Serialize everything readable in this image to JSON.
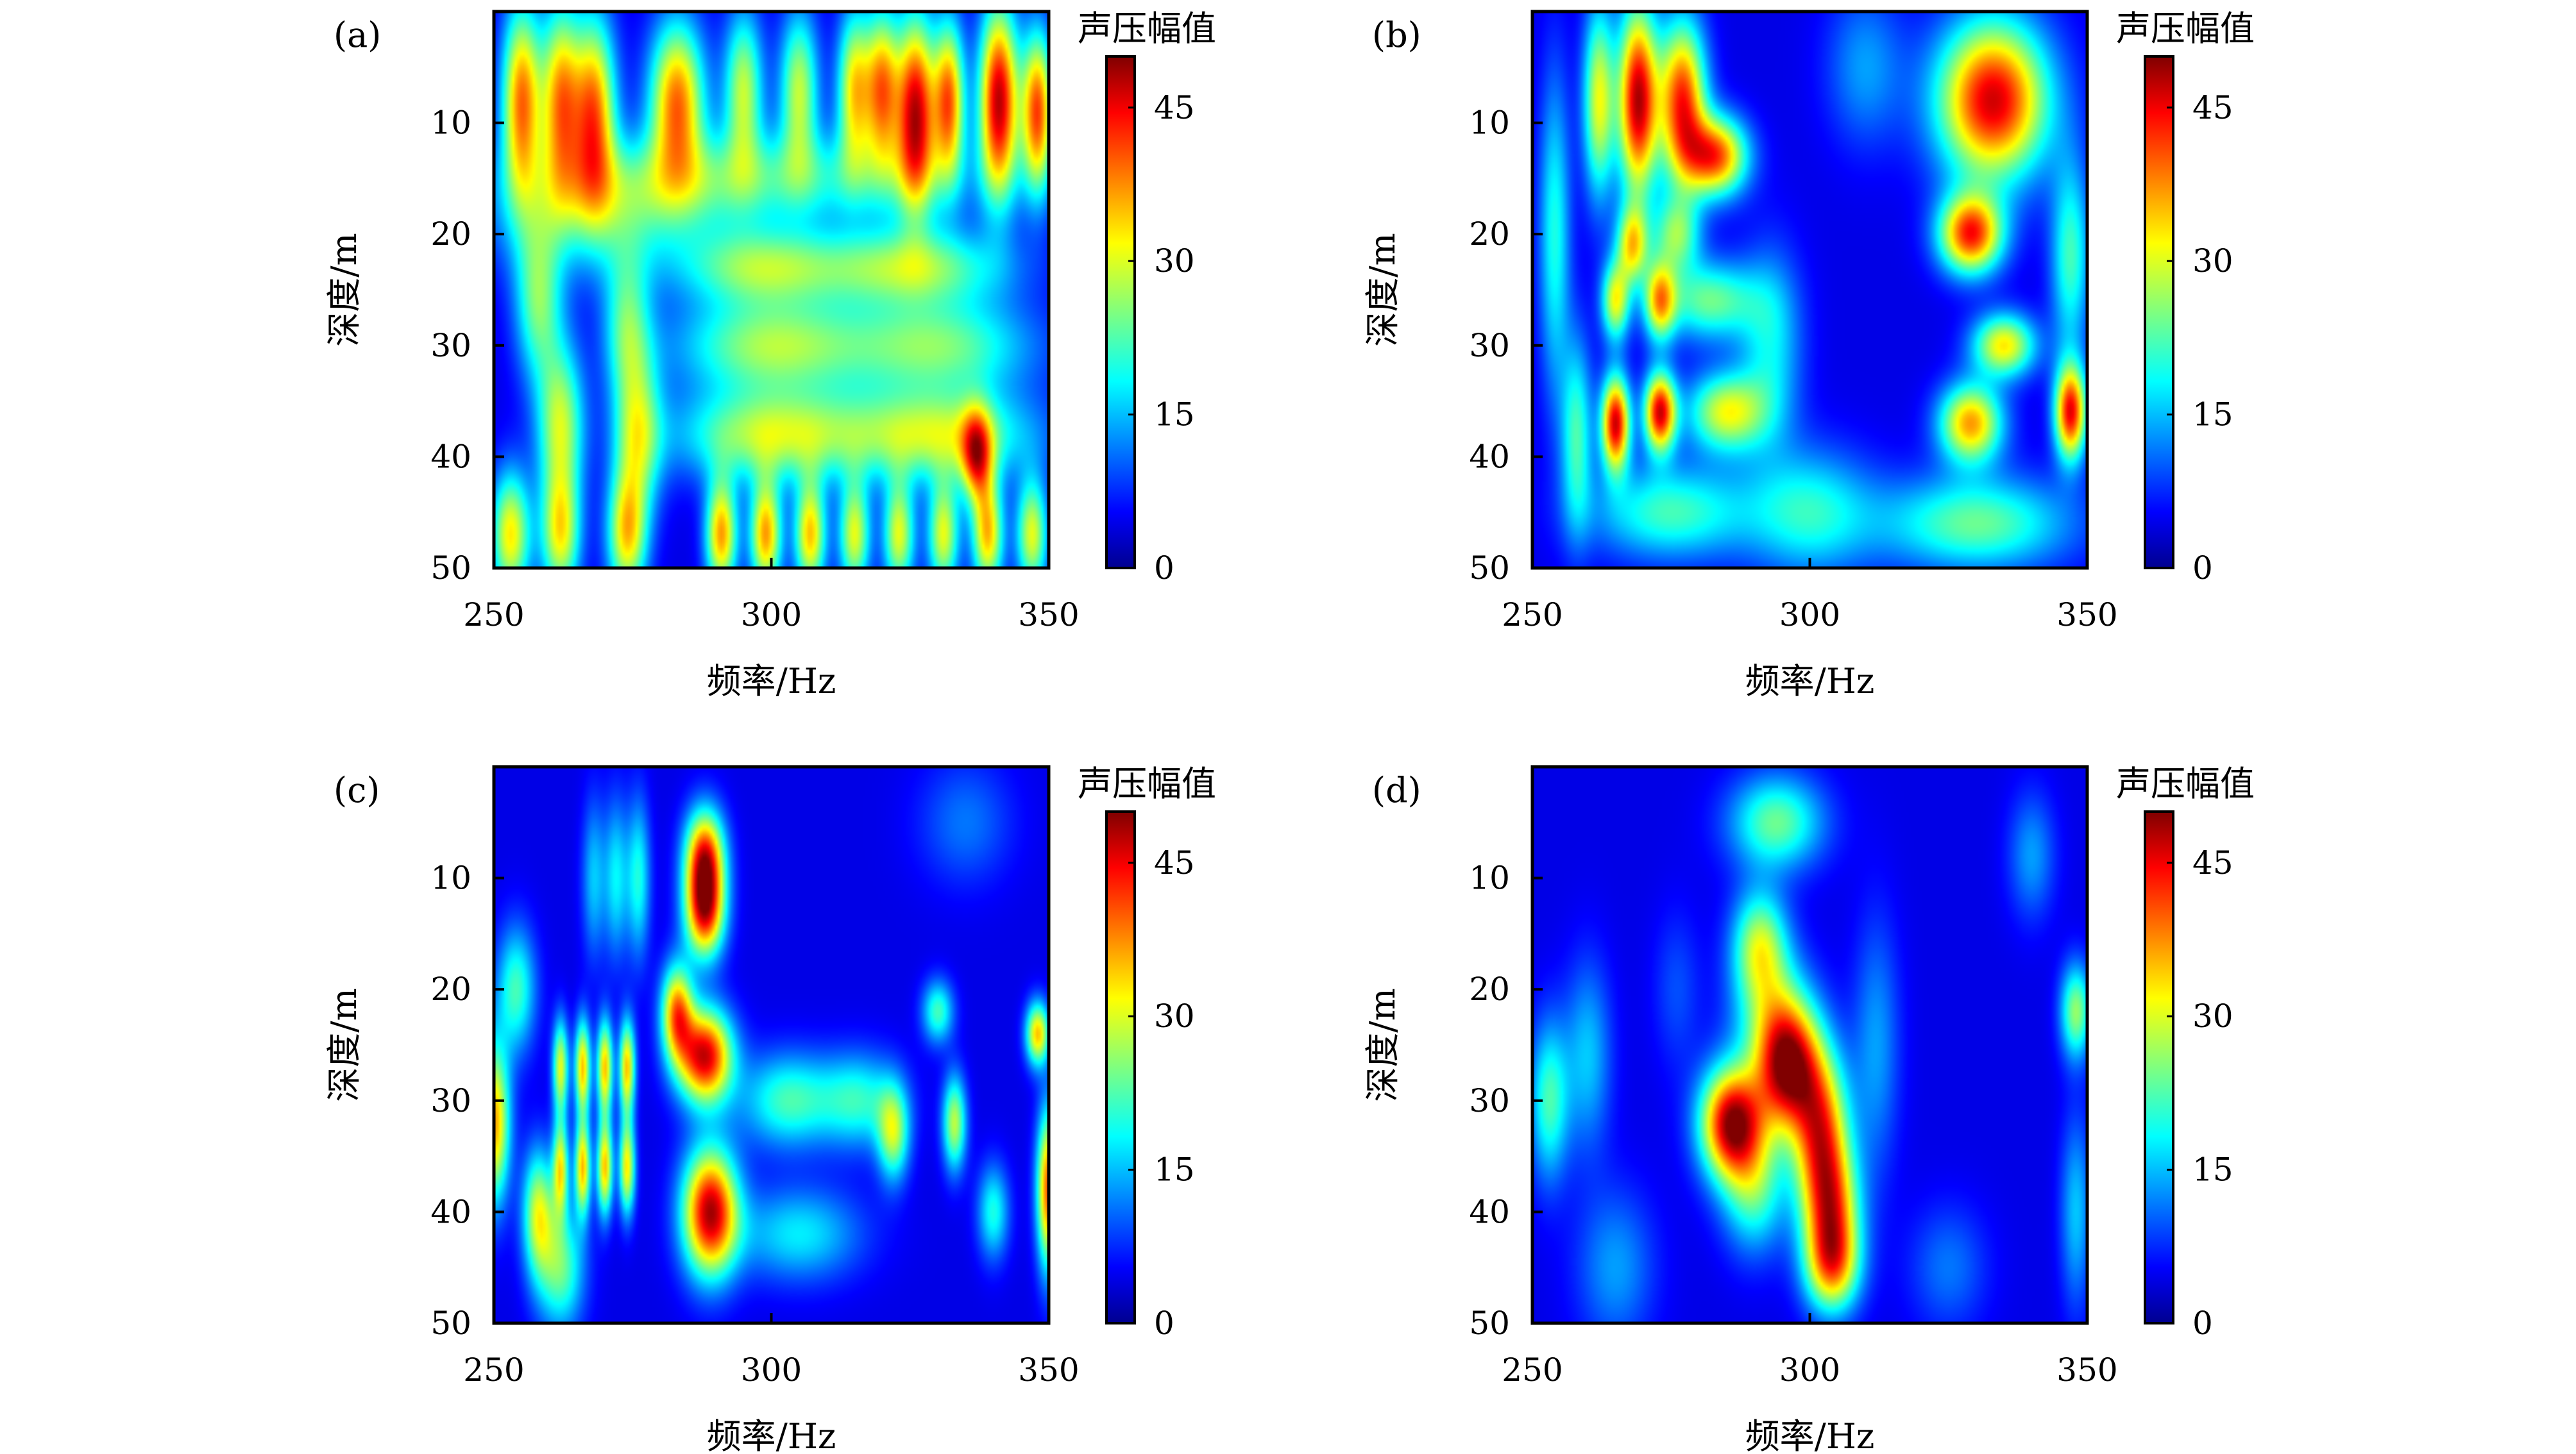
{
  "chart_data": [
    {
      "type": "heatmap",
      "panel_label": "(a)",
      "xlabel": "频率/Hz",
      "ylabel": "深度/m",
      "colorbar_label": "声压幅值",
      "xlim": [
        250,
        350
      ],
      "ylim": [
        0,
        50
      ],
      "y_inverted": true,
      "xticks": [
        "250",
        "300",
        "350"
      ],
      "yticks": [
        "10",
        "20",
        "30",
        "40",
        "50"
      ],
      "colorbar_ticks": [
        "0",
        "15",
        "30",
        "45"
      ],
      "zlim": [
        0,
        50
      ],
      "colormap": "jet",
      "blobs": [
        {
          "x": 255,
          "y": 8,
          "v": 38,
          "sx": 2.5,
          "sy": 6
        },
        {
          "x": 262,
          "y": 8,
          "v": 35,
          "sx": 2.5,
          "sy": 6
        },
        {
          "x": 268,
          "y": 9,
          "v": 38,
          "sx": 2.8,
          "sy": 6
        },
        {
          "x": 283,
          "y": 8,
          "v": 38,
          "sx": 3.5,
          "sy": 5
        },
        {
          "x": 295,
          "y": 7,
          "v": 28,
          "sx": 2.5,
          "sy": 5
        },
        {
          "x": 305,
          "y": 7,
          "v": 28,
          "sx": 2.5,
          "sy": 5
        },
        {
          "x": 315,
          "y": 7,
          "v": 32,
          "sx": 2.2,
          "sy": 5
        },
        {
          "x": 320,
          "y": 7,
          "v": 36,
          "sx": 2.2,
          "sy": 5
        },
        {
          "x": 326,
          "y": 9,
          "v": 46,
          "sx": 2.5,
          "sy": 6
        },
        {
          "x": 332,
          "y": 8,
          "v": 38,
          "sx": 2,
          "sy": 5
        },
        {
          "x": 341,
          "y": 8,
          "v": 47,
          "sx": 2.5,
          "sy": 6
        },
        {
          "x": 348,
          "y": 9,
          "v": 40,
          "sx": 2,
          "sy": 5
        },
        {
          "x": 258,
          "y": 26,
          "v": 24,
          "sx": 3,
          "sy": 5
        },
        {
          "x": 274,
          "y": 28,
          "v": 22,
          "sx": 3,
          "sy": 5
        },
        {
          "x": 298,
          "y": 23,
          "v": 24,
          "sx": 10,
          "sy": 2.5
        },
        {
          "x": 325,
          "y": 23,
          "v": 26,
          "sx": 12,
          "sy": 2.5
        },
        {
          "x": 300,
          "y": 30,
          "v": 26,
          "sx": 12,
          "sy": 3
        },
        {
          "x": 330,
          "y": 30,
          "v": 24,
          "sx": 12,
          "sy": 3
        },
        {
          "x": 262,
          "y": 37,
          "v": 28,
          "sx": 3,
          "sy": 5
        },
        {
          "x": 276,
          "y": 38,
          "v": 26,
          "sx": 3,
          "sy": 5
        },
        {
          "x": 300,
          "y": 38,
          "v": 28,
          "sx": 12,
          "sy": 3
        },
        {
          "x": 330,
          "y": 38,
          "v": 28,
          "sx": 12,
          "sy": 3
        },
        {
          "x": 337,
          "y": 40,
          "v": 32,
          "sx": 2,
          "sy": 3
        },
        {
          "x": 253,
          "y": 47,
          "v": 32,
          "sx": 2.5,
          "sy": 4
        },
        {
          "x": 262,
          "y": 47,
          "v": 30,
          "sx": 2.5,
          "sy": 4
        },
        {
          "x": 274,
          "y": 47,
          "v": 32,
          "sx": 2.5,
          "sy": 4
        },
        {
          "x": 291,
          "y": 47,
          "v": 36,
          "sx": 2,
          "sy": 3.5
        },
        {
          "x": 299,
          "y": 47,
          "v": 36,
          "sx": 2,
          "sy": 3.5
        },
        {
          "x": 307,
          "y": 47,
          "v": 34,
          "sx": 2,
          "sy": 3.5
        },
        {
          "x": 315,
          "y": 47,
          "v": 30,
          "sx": 2,
          "sy": 3.5
        },
        {
          "x": 323,
          "y": 47,
          "v": 30,
          "sx": 2,
          "sy": 3.5
        },
        {
          "x": 331,
          "y": 47,
          "v": 30,
          "sx": 2,
          "sy": 3.5
        },
        {
          "x": 339,
          "y": 47,
          "v": 34,
          "sx": 2,
          "sy": 3.5
        },
        {
          "x": 347,
          "y": 47,
          "v": 30,
          "sx": 2,
          "sy": 3.5
        },
        {
          "x": 300,
          "y": 15,
          "v": 20,
          "sx": 25,
          "sy": 3
        },
        {
          "x": 270,
          "y": 18,
          "v": 18,
          "sx": 15,
          "sy": 4
        }
      ]
    },
    {
      "type": "heatmap",
      "panel_label": "(b)",
      "xlabel": "频率/Hz",
      "ylabel": "深度/m",
      "colorbar_label": "声压幅值",
      "xlim": [
        250,
        350
      ],
      "ylim": [
        0,
        50
      ],
      "y_inverted": true,
      "xticks": [
        "250",
        "300",
        "350"
      ],
      "yticks": [
        "10",
        "20",
        "30",
        "40",
        "50"
      ],
      "colorbar_ticks": [
        "0",
        "15",
        "30",
        "45"
      ],
      "zlim": [
        0,
        50
      ],
      "colormap": "jet",
      "blobs": [
        {
          "x": 269,
          "y": 8,
          "v": 47,
          "sx": 2.5,
          "sy": 6
        },
        {
          "x": 277,
          "y": 8,
          "v": 42,
          "sx": 3,
          "sy": 5
        },
        {
          "x": 283,
          "y": 13,
          "v": 40,
          "sx": 4,
          "sy": 2.5
        },
        {
          "x": 262,
          "y": 8,
          "v": 30,
          "sx": 2,
          "sy": 6
        },
        {
          "x": 333,
          "y": 8,
          "v": 46,
          "sx": 7,
          "sy": 5
        },
        {
          "x": 329,
          "y": 20,
          "v": 42,
          "sx": 4,
          "sy": 2.5
        },
        {
          "x": 335,
          "y": 30,
          "v": 32,
          "sx": 4,
          "sy": 2
        },
        {
          "x": 329,
          "y": 37,
          "v": 36,
          "sx": 4,
          "sy": 2.5
        },
        {
          "x": 347,
          "y": 36,
          "v": 44,
          "sx": 2,
          "sy": 3
        },
        {
          "x": 265,
          "y": 37,
          "v": 46,
          "sx": 1.8,
          "sy": 3
        },
        {
          "x": 273,
          "y": 36,
          "v": 45,
          "sx": 2,
          "sy": 2.5
        },
        {
          "x": 285,
          "y": 36,
          "v": 30,
          "sx": 5,
          "sy": 2.5
        },
        {
          "x": 273,
          "y": 26,
          "v": 32,
          "sx": 2,
          "sy": 2.5
        },
        {
          "x": 265,
          "y": 26,
          "v": 30,
          "sx": 1.8,
          "sy": 2.5
        },
        {
          "x": 282,
          "y": 26,
          "v": 24,
          "sx": 6,
          "sy": 2.5
        },
        {
          "x": 268,
          "y": 21,
          "v": 30,
          "sx": 2,
          "sy": 2.5
        },
        {
          "x": 276,
          "y": 20,
          "v": 24,
          "sx": 3,
          "sy": 2.5
        },
        {
          "x": 330,
          "y": 46,
          "v": 24,
          "sx": 12,
          "sy": 3
        },
        {
          "x": 275,
          "y": 45,
          "v": 22,
          "sx": 10,
          "sy": 3
        },
        {
          "x": 300,
          "y": 45,
          "v": 20,
          "sx": 8,
          "sy": 4
        },
        {
          "x": 254,
          "y": 20,
          "v": 20,
          "sx": 2,
          "sy": 10
        },
        {
          "x": 258,
          "y": 38,
          "v": 22,
          "sx": 2,
          "sy": 6
        },
        {
          "x": 347,
          "y": 22,
          "v": 22,
          "sx": 2.5,
          "sy": 6
        },
        {
          "x": 310,
          "y": 5,
          "v": 14,
          "sx": 5,
          "sy": 5
        },
        {
          "x": 293,
          "y": 30,
          "v": 18,
          "sx": 4,
          "sy": 6
        }
      ]
    },
    {
      "type": "heatmap",
      "panel_label": "(c)",
      "xlabel": "频率/Hz",
      "ylabel": "深度/m",
      "colorbar_label": "声压幅值",
      "xlim": [
        250,
        350
      ],
      "ylim": [
        0,
        50
      ],
      "y_inverted": true,
      "xticks": [
        "250",
        "300",
        "350"
      ],
      "yticks": [
        "10",
        "20",
        "30",
        "40",
        "50"
      ],
      "colorbar_ticks": [
        "0",
        "15",
        "30",
        "45"
      ],
      "zlim": [
        0,
        50
      ],
      "colormap": "jet",
      "blobs": [
        {
          "x": 288,
          "y": 8,
          "v": 40,
          "sx": 2.5,
          "sy": 3
        },
        {
          "x": 288,
          "y": 13,
          "v": 42,
          "sx": 2.5,
          "sy": 3
        },
        {
          "x": 288,
          "y": 26,
          "v": 46,
          "sx": 3.5,
          "sy": 3
        },
        {
          "x": 283,
          "y": 22,
          "v": 36,
          "sx": 2,
          "sy": 3
        },
        {
          "x": 289,
          "y": 40,
          "v": 47,
          "sx": 3.5,
          "sy": 4
        },
        {
          "x": 250,
          "y": 32,
          "v": 36,
          "sx": 2,
          "sy": 5
        },
        {
          "x": 350,
          "y": 38,
          "v": 40,
          "sx": 1.5,
          "sy": 5
        },
        {
          "x": 348,
          "y": 24,
          "v": 34,
          "sx": 1.5,
          "sy": 2
        },
        {
          "x": 262,
          "y": 27,
          "v": 30,
          "sx": 1,
          "sy": 3
        },
        {
          "x": 266,
          "y": 27,
          "v": 34,
          "sx": 1,
          "sy": 3
        },
        {
          "x": 270,
          "y": 27,
          "v": 34,
          "sx": 1,
          "sy": 3
        },
        {
          "x": 274,
          "y": 27,
          "v": 34,
          "sx": 1,
          "sy": 3
        },
        {
          "x": 262,
          "y": 36,
          "v": 30,
          "sx": 1,
          "sy": 3
        },
        {
          "x": 266,
          "y": 36,
          "v": 34,
          "sx": 1,
          "sy": 3
        },
        {
          "x": 270,
          "y": 36,
          "v": 34,
          "sx": 1,
          "sy": 3
        },
        {
          "x": 274,
          "y": 36,
          "v": 32,
          "sx": 1,
          "sy": 3
        },
        {
          "x": 258,
          "y": 40,
          "v": 28,
          "sx": 2,
          "sy": 4
        },
        {
          "x": 262,
          "y": 45,
          "v": 24,
          "sx": 3,
          "sy": 4
        },
        {
          "x": 272,
          "y": 10,
          "v": 18,
          "sx": 1.5,
          "sy": 5
        },
        {
          "x": 276,
          "y": 10,
          "v": 20,
          "sx": 1.5,
          "sy": 5
        },
        {
          "x": 268,
          "y": 10,
          "v": 16,
          "sx": 1.5,
          "sy": 5
        },
        {
          "x": 254,
          "y": 20,
          "v": 22,
          "sx": 2.5,
          "sy": 4
        },
        {
          "x": 303,
          "y": 30,
          "v": 22,
          "sx": 6,
          "sy": 3
        },
        {
          "x": 316,
          "y": 30,
          "v": 20,
          "sx": 5,
          "sy": 3
        },
        {
          "x": 322,
          "y": 33,
          "v": 26,
          "sx": 2,
          "sy": 3
        },
        {
          "x": 333,
          "y": 32,
          "v": 28,
          "sx": 1.5,
          "sy": 3
        },
        {
          "x": 330,
          "y": 22,
          "v": 22,
          "sx": 2,
          "sy": 2
        },
        {
          "x": 340,
          "y": 40,
          "v": 20,
          "sx": 2,
          "sy": 3
        },
        {
          "x": 305,
          "y": 42,
          "v": 18,
          "sx": 8,
          "sy": 3
        },
        {
          "x": 335,
          "y": 5,
          "v": 12,
          "sx": 6,
          "sy": 4
        }
      ]
    },
    {
      "type": "heatmap",
      "panel_label": "(d)",
      "xlabel": "频率/Hz",
      "ylabel": "深度/m",
      "colorbar_label": "声压幅值",
      "xlim": [
        250,
        350
      ],
      "ylim": [
        0,
        50
      ],
      "y_inverted": true,
      "xticks": [
        "250",
        "300",
        "350"
      ],
      "yticks": [
        "10",
        "20",
        "30",
        "40",
        "50"
      ],
      "colorbar_ticks": [
        "0",
        "15",
        "30",
        "45"
      ],
      "zlim": [
        0,
        50
      ],
      "colormap": "jet",
      "blobs": [
        {
          "x": 294,
          "y": 5,
          "v": 24,
          "sx": 6,
          "sy": 3
        },
        {
          "x": 291,
          "y": 16,
          "v": 27,
          "sx": 3.5,
          "sy": 3.5
        },
        {
          "x": 293,
          "y": 22,
          "v": 18,
          "sx": 5,
          "sy": 4
        },
        {
          "x": 296,
          "y": 27,
          "v": 46,
          "sx": 4,
          "sy": 4
        },
        {
          "x": 286,
          "y": 32,
          "v": 48,
          "sx": 4,
          "sy": 3.5
        },
        {
          "x": 302,
          "y": 33,
          "v": 38,
          "sx": 3.5,
          "sy": 5
        },
        {
          "x": 304,
          "y": 40,
          "v": 32,
          "sx": 3.5,
          "sy": 4
        },
        {
          "x": 304,
          "y": 45,
          "v": 30,
          "sx": 3.5,
          "sy": 3
        },
        {
          "x": 290,
          "y": 38,
          "v": 22,
          "sx": 4,
          "sy": 4
        },
        {
          "x": 253,
          "y": 30,
          "v": 22,
          "sx": 2.5,
          "sy": 5
        },
        {
          "x": 260,
          "y": 26,
          "v": 16,
          "sx": 3,
          "sy": 6
        },
        {
          "x": 348,
          "y": 22,
          "v": 26,
          "sx": 2,
          "sy": 3
        },
        {
          "x": 348,
          "y": 40,
          "v": 16,
          "sx": 2,
          "sy": 6
        },
        {
          "x": 340,
          "y": 8,
          "v": 14,
          "sx": 3,
          "sy": 4
        },
        {
          "x": 312,
          "y": 25,
          "v": 14,
          "sx": 3,
          "sy": 8
        },
        {
          "x": 265,
          "y": 45,
          "v": 14,
          "sx": 5,
          "sy": 5
        },
        {
          "x": 325,
          "y": 45,
          "v": 12,
          "sx": 5,
          "sy": 4
        },
        {
          "x": 276,
          "y": 20,
          "v": 10,
          "sx": 3,
          "sy": 5
        }
      ]
    }
  ]
}
